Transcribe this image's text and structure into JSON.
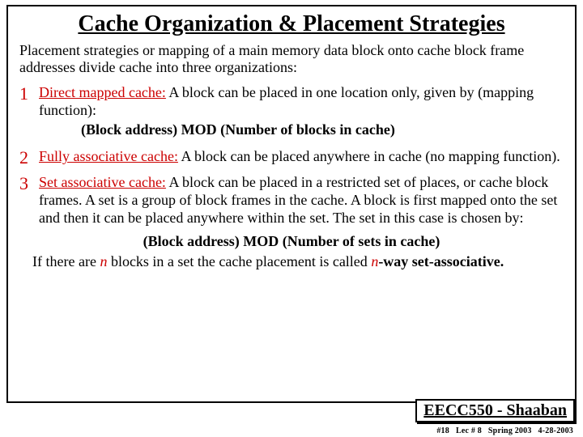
{
  "title": "Cache Organization & Placement Strategies",
  "intro": "Placement strategies or mapping of a main memory data block onto cache block frame addresses divide cache into three organizations:",
  "items": [
    {
      "num": "1",
      "label": "Direct mapped cache:",
      "text_after_label": "  A block can be placed in one location only, given by (mapping function):",
      "formula": "(Block address)  MOD  (Number of blocks in cache)"
    },
    {
      "num": "2",
      "label": "Fully associative cache:",
      "text_after_label": "  A block can be placed anywhere in cache (no mapping function)."
    },
    {
      "num": "3",
      "label": "Set associative cache:",
      "text_after_label": "  A block can be placed in a restricted set of places, or cache block frames.   A set is a group of block frames in the cache.   A block is first mapped onto the set and then it can be placed anywhere within the set.   The set in this case is chosen by:",
      "formula_center": "(Block address)  MOD  (Number of sets in cache)"
    }
  ],
  "closing_pre": "If there are  ",
  "closing_n1": "n",
  "closing_mid": "  blocks in a set the cache placement is called  ",
  "closing_n2": "n",
  "closing_post": "-way set-associative.",
  "footer": "EECC550 - Shaaban",
  "sub": {
    "a": "#18",
    "b": "Lec # 8",
    "c": "Spring 2003",
    "d": "4-28-2003"
  },
  "colors": {
    "accent": "#cc0000",
    "border": "#000000",
    "bg": "#ffffff"
  }
}
